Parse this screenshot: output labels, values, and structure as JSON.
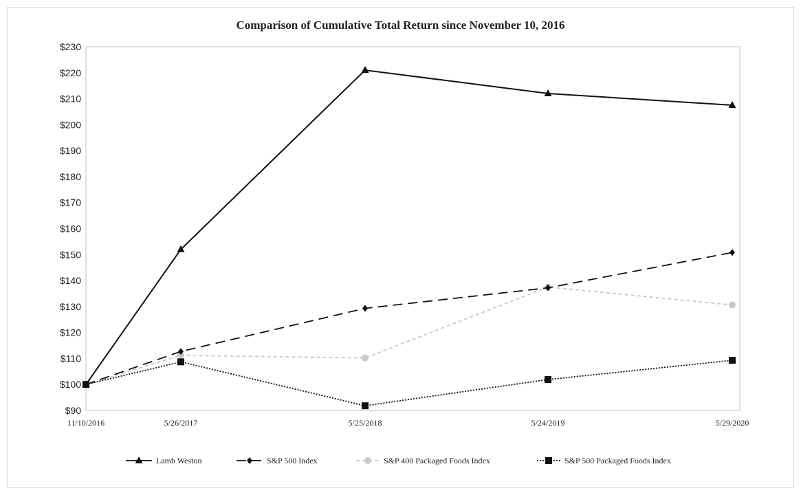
{
  "chart_data": {
    "type": "line",
    "title": "Comparison of Cumulative Total Return since November 10, 2016",
    "xlabel": "",
    "ylabel": "",
    "x": [
      "11/10/2016",
      "5/26/2017",
      "5/25/2018",
      "5/24/2019",
      "5/29/2020"
    ],
    "ylim": [
      90,
      230
    ],
    "yticks": [
      "$90",
      "$100",
      "$110",
      "$120",
      "$130",
      "$140",
      "$150",
      "$160",
      "$170",
      "$180",
      "$190",
      "$200",
      "$210",
      "$220",
      "$230"
    ],
    "grid": false,
    "legend_position": "bottom",
    "series": [
      {
        "name": "Lamb Weston",
        "values": [
          100,
          152,
          221,
          212,
          207.5
        ],
        "color": "#111111",
        "dash": "solid",
        "marker": "triangle"
      },
      {
        "name": "S&P 500 Index",
        "values": [
          100,
          112.7,
          129.3,
          137.2,
          150.8
        ],
        "color": "#111111",
        "dash": "long-dash",
        "marker": "diamond"
      },
      {
        "name": "S&P 400 Packaged Foods Index",
        "values": [
          100,
          111.2,
          110.2,
          137.5,
          130.6
        ],
        "color": "#c8c8c8",
        "dash": "short-dash",
        "marker": "circle"
      },
      {
        "name": "S&P 500 Packaged Foods Index",
        "values": [
          100,
          108.7,
          91.8,
          101.9,
          109.3
        ],
        "color": "#111111",
        "dash": "dotted",
        "marker": "square"
      }
    ]
  }
}
